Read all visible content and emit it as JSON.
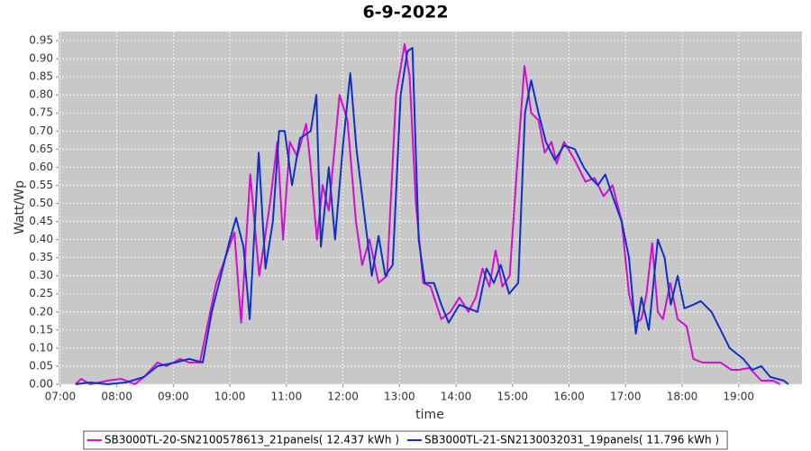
{
  "chart_data": {
    "type": "line",
    "title": "6-9-2022",
    "x_label": "time",
    "y_label": "Watt/Wp",
    "xlim": [
      6.97,
      20.12
    ],
    "ylim": [
      0,
      0.975
    ],
    "xticks": [
      {
        "value": 7,
        "label": "07:00"
      },
      {
        "value": 8,
        "label": "08:00"
      },
      {
        "value": 9,
        "label": "09:00"
      },
      {
        "value": 10,
        "label": "10:00"
      },
      {
        "value": 11,
        "label": "11:00"
      },
      {
        "value": 12,
        "label": "12:00"
      },
      {
        "value": 13,
        "label": "13:00"
      },
      {
        "value": 14,
        "label": "14:00"
      },
      {
        "value": 15,
        "label": "15:00"
      },
      {
        "value": 16,
        "label": "16:00"
      },
      {
        "value": 17,
        "label": "17:00"
      },
      {
        "value": 18,
        "label": "18:00"
      },
      {
        "value": 19,
        "label": "19:00"
      }
    ],
    "yticks": [
      {
        "value": 0,
        "label": "0.00"
      },
      {
        "value": 0.05,
        "label": "0.05"
      },
      {
        "value": 0.1,
        "label": "0.10"
      },
      {
        "value": 0.15,
        "label": "0.15"
      },
      {
        "value": 0.2,
        "label": "0.20"
      },
      {
        "value": 0.25,
        "label": "0.25"
      },
      {
        "value": 0.3,
        "label": "0.30"
      },
      {
        "value": 0.35,
        "label": "0.35"
      },
      {
        "value": 0.4,
        "label": "0.40"
      },
      {
        "value": 0.45,
        "label": "0.45"
      },
      {
        "value": 0.5,
        "label": "0.50"
      },
      {
        "value": 0.55,
        "label": "0.55"
      },
      {
        "value": 0.6,
        "label": "0.60"
      },
      {
        "value": 0.65,
        "label": "0.65"
      },
      {
        "value": 0.7,
        "label": "0.70"
      },
      {
        "value": 0.75,
        "label": "0.75"
      },
      {
        "value": 0.8,
        "label": "0.80"
      },
      {
        "value": 0.85,
        "label": "0.85"
      },
      {
        "value": 0.9,
        "label": "0.90"
      },
      {
        "value": 0.95,
        "label": "0.95"
      }
    ],
    "grid": true,
    "series": [
      {
        "name": "SB3000TL-20-SN2100578613_21panels( 12.437 kWh )",
        "color": "#d010d0",
        "x": [
          7.27,
          7.37,
          7.53,
          7.84,
          8.08,
          8.32,
          8.48,
          8.72,
          8.88,
          9.12,
          9.28,
          9.47,
          9.6,
          9.76,
          9.92,
          10.08,
          10.2,
          10.36,
          10.52,
          10.71,
          10.84,
          10.94,
          11.06,
          11.19,
          11.35,
          11.43,
          11.54,
          11.64,
          11.75,
          11.94,
          12.08,
          12.23,
          12.34,
          12.47,
          12.63,
          12.78,
          12.94,
          13.09,
          13.18,
          13.29,
          13.42,
          13.55,
          13.74,
          13.9,
          14.06,
          14.22,
          14.35,
          14.47,
          14.59,
          14.7,
          14.82,
          14.95,
          15.08,
          15.21,
          15.33,
          15.46,
          15.57,
          15.69,
          15.78,
          15.91,
          16.1,
          16.29,
          16.45,
          16.61,
          16.77,
          16.93,
          17.06,
          17.18,
          17.28,
          17.37,
          17.47,
          17.57,
          17.66,
          17.79,
          17.92,
          18.08,
          18.2,
          18.36,
          18.68,
          18.87,
          19.0,
          19.19,
          19.4,
          19.61,
          19.73
        ],
        "values": [
          0.0,
          0.015,
          0.0,
          0.01,
          0.015,
          0.0,
          0.02,
          0.06,
          0.05,
          0.07,
          0.06,
          0.06,
          0.16,
          0.28,
          0.35,
          0.42,
          0.17,
          0.58,
          0.3,
          0.5,
          0.67,
          0.4,
          0.67,
          0.63,
          0.72,
          0.6,
          0.4,
          0.55,
          0.48,
          0.8,
          0.73,
          0.45,
          0.33,
          0.4,
          0.28,
          0.3,
          0.8,
          0.94,
          0.85,
          0.5,
          0.28,
          0.27,
          0.18,
          0.2,
          0.24,
          0.2,
          0.24,
          0.32,
          0.27,
          0.37,
          0.27,
          0.3,
          0.6,
          0.88,
          0.75,
          0.73,
          0.64,
          0.67,
          0.61,
          0.67,
          0.62,
          0.56,
          0.57,
          0.52,
          0.55,
          0.45,
          0.25,
          0.17,
          0.18,
          0.25,
          0.39,
          0.2,
          0.18,
          0.28,
          0.18,
          0.16,
          0.07,
          0.06,
          0.06,
          0.04,
          0.04,
          0.045,
          0.01,
          0.01,
          0.0
        ]
      },
      {
        "name": "SB3000TL-21-SN2130032031_19panels( 11.796 kWh )",
        "color": "#1030c8",
        "x": [
          7.27,
          7.53,
          7.84,
          8.16,
          8.48,
          8.72,
          9.04,
          9.28,
          9.52,
          9.68,
          9.84,
          10.0,
          10.11,
          10.24,
          10.35,
          10.51,
          10.63,
          10.76,
          10.87,
          10.97,
          11.1,
          11.24,
          11.43,
          11.53,
          11.61,
          11.75,
          11.86,
          12.0,
          12.13,
          12.24,
          12.37,
          12.51,
          12.63,
          12.75,
          12.88,
          13.02,
          13.14,
          13.23,
          13.34,
          13.45,
          13.61,
          13.74,
          13.87,
          14.06,
          14.22,
          14.38,
          14.54,
          14.67,
          14.79,
          14.94,
          15.1,
          15.22,
          15.33,
          15.46,
          15.59,
          15.75,
          15.91,
          16.1,
          16.26,
          16.39,
          16.51,
          16.64,
          16.77,
          16.93,
          17.06,
          17.18,
          17.28,
          17.41,
          17.57,
          17.69,
          17.8,
          17.92,
          18.04,
          18.2,
          18.33,
          18.52,
          18.68,
          18.84,
          19.08,
          19.24,
          19.4,
          19.56,
          19.8,
          19.88
        ],
        "values": [
          0.0,
          0.005,
          0.0,
          0.005,
          0.02,
          0.05,
          0.06,
          0.07,
          0.06,
          0.2,
          0.3,
          0.4,
          0.46,
          0.38,
          0.18,
          0.64,
          0.32,
          0.45,
          0.7,
          0.7,
          0.55,
          0.68,
          0.7,
          0.8,
          0.38,
          0.6,
          0.4,
          0.66,
          0.86,
          0.65,
          0.48,
          0.3,
          0.41,
          0.3,
          0.33,
          0.8,
          0.92,
          0.93,
          0.4,
          0.28,
          0.28,
          0.22,
          0.17,
          0.22,
          0.21,
          0.2,
          0.32,
          0.28,
          0.33,
          0.25,
          0.28,
          0.75,
          0.84,
          0.75,
          0.67,
          0.62,
          0.66,
          0.65,
          0.6,
          0.57,
          0.55,
          0.58,
          0.52,
          0.45,
          0.35,
          0.14,
          0.24,
          0.15,
          0.4,
          0.35,
          0.22,
          0.3,
          0.21,
          0.22,
          0.23,
          0.2,
          0.15,
          0.1,
          0.07,
          0.04,
          0.05,
          0.02,
          0.01,
          0.0
        ]
      }
    ]
  }
}
